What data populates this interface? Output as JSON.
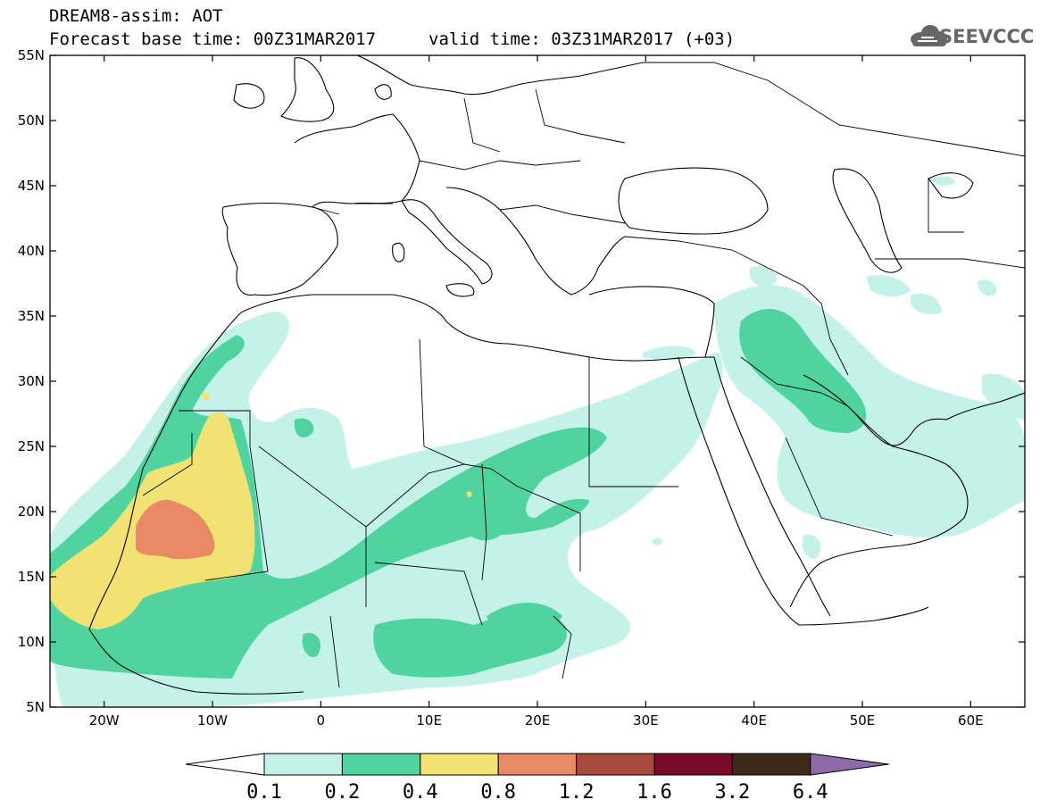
{
  "title": {
    "line1": "DREAM8-assim: AOT",
    "base_time": "Forecast base time: 00Z31MAR2017",
    "valid_time": "valid time: 03Z31MAR2017 (+03)"
  },
  "logo": {
    "text": "SEEVCCC",
    "icon": "cloud-icon"
  },
  "map": {
    "projection": "equirectangular",
    "lon_range": [
      -25,
      65
    ],
    "lat_range": [
      5,
      55
    ],
    "lat_ticks": [
      {
        "value": 55,
        "label": "55N"
      },
      {
        "value": 50,
        "label": "50N"
      },
      {
        "value": 45,
        "label": "45N"
      },
      {
        "value": 40,
        "label": "40N"
      },
      {
        "value": 35,
        "label": "35N"
      },
      {
        "value": 30,
        "label": "30N"
      },
      {
        "value": 25,
        "label": "25N"
      },
      {
        "value": 20,
        "label": "20N"
      },
      {
        "value": 15,
        "label": "15N"
      },
      {
        "value": 10,
        "label": "10N"
      },
      {
        "value": 5,
        "label": "5N"
      }
    ],
    "lon_ticks": [
      {
        "value": -20,
        "label": "20W"
      },
      {
        "value": -10,
        "label": "10W"
      },
      {
        "value": 0,
        "label": "0"
      },
      {
        "value": 10,
        "label": "10E"
      },
      {
        "value": 20,
        "label": "20E"
      },
      {
        "value": 30,
        "label": "30E"
      },
      {
        "value": 40,
        "label": "40E"
      },
      {
        "value": 50,
        "label": "50E"
      },
      {
        "value": 60,
        "label": "60E"
      }
    ],
    "coastline_color": "#000000",
    "background": "#ffffff"
  },
  "colorbar": {
    "levels": [
      "0.1",
      "0.2",
      "0.4",
      "0.8",
      "1.2",
      "1.6",
      "3.2",
      "6.4"
    ],
    "colors": [
      "#c4f2e8",
      "#4fd4a0",
      "#f2e272",
      "#e88a64",
      "#a84a3c",
      "#7a0a2a",
      "#3e2a18",
      "#8e6aa8"
    ],
    "below_color": "#ffffff"
  }
}
